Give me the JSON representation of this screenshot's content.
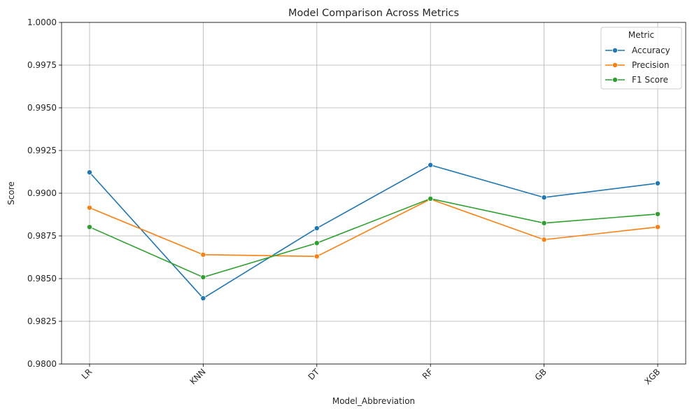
{
  "chart_data": {
    "type": "line",
    "title": "Model Comparison Across Metrics",
    "xlabel": "Model_Abbreviation",
    "ylabel": "Score",
    "categories": [
      "LR",
      "KNN",
      "DT",
      "RF",
      "GB",
      "XGB"
    ],
    "ylim": [
      0.98,
      1.0
    ],
    "yticks": [
      "0.9800",
      "0.9825",
      "0.9850",
      "0.9875",
      "0.9900",
      "0.9925",
      "0.9950",
      "0.9975",
      "1.0000"
    ],
    "grid": true,
    "legend": {
      "title": "Metric",
      "placement": "top-right"
    },
    "series": [
      {
        "name": "Accuracy",
        "color": "#1f77b4",
        "values": [
          0.99122,
          0.98385,
          0.98795,
          0.99165,
          0.98975,
          0.99058
        ]
      },
      {
        "name": "Precision",
        "color": "#ff7f0e",
        "values": [
          0.98915,
          0.9864,
          0.9863,
          0.98965,
          0.98728,
          0.98802
        ]
      },
      {
        "name": "F1 Score",
        "color": "#2ca02c",
        "values": [
          0.98802,
          0.98508,
          0.98708,
          0.98968,
          0.98825,
          0.98878
        ]
      }
    ]
  }
}
